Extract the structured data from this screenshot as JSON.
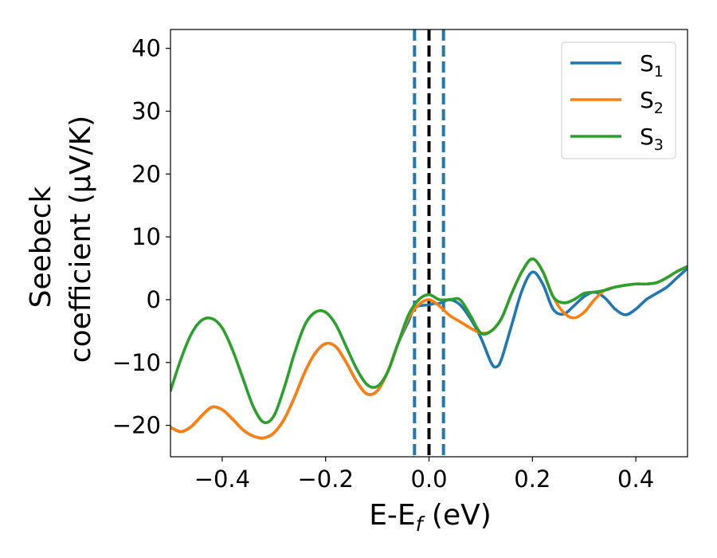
{
  "chart_data": {
    "type": "line",
    "xlabel": "E-E",
    "xlabel_sub": "f",
    "xlabel_unit": " (eV)",
    "ylabel_line1": "Seebeck",
    "ylabel_line2": "coefficient  (μV/K)",
    "xlim": [
      -0.5,
      0.5
    ],
    "ylim": [
      -25,
      43
    ],
    "xticks": [
      -0.4,
      -0.2,
      0.0,
      0.2,
      0.4
    ],
    "xtick_labels": [
      "−0.4",
      "−0.2",
      "0.0",
      "0.2",
      "0.4"
    ],
    "yticks": [
      -20,
      -10,
      0,
      10,
      20,
      30,
      40
    ],
    "ytick_labels": [
      "−20",
      "−10",
      "0",
      "10",
      "20",
      "30",
      "40"
    ],
    "grid": false,
    "legend_position": "top-right",
    "vlines": [
      {
        "x": -0.028,
        "style": "dashed",
        "color": "#1f77b4"
      },
      {
        "x": 0.0,
        "style": "dashed",
        "color": "#000000"
      },
      {
        "x": 0.028,
        "style": "dashed",
        "color": "#1f77b4"
      }
    ],
    "series": [
      {
        "name": "S",
        "sub": "1",
        "color": "#1f77b4",
        "points": [
          [
            -0.5,
            -20.3
          ],
          [
            -0.48,
            -21.0
          ],
          [
            -0.46,
            -20.2
          ],
          [
            -0.44,
            -18.5
          ],
          [
            -0.42,
            -17.1
          ],
          [
            -0.4,
            -17.5
          ],
          [
            -0.38,
            -19.0
          ],
          [
            -0.36,
            -20.7
          ],
          [
            -0.34,
            -21.7
          ],
          [
            -0.32,
            -22.0
          ],
          [
            -0.3,
            -21.2
          ],
          [
            -0.28,
            -19.0
          ],
          [
            -0.26,
            -15.5
          ],
          [
            -0.24,
            -11.5
          ],
          [
            -0.22,
            -8.5
          ],
          [
            -0.2,
            -7.0
          ],
          [
            -0.18,
            -7.5
          ],
          [
            -0.16,
            -10.0
          ],
          [
            -0.14,
            -13.0
          ],
          [
            -0.12,
            -15.0
          ],
          [
            -0.1,
            -14.5
          ],
          [
            -0.08,
            -11.5
          ],
          [
            -0.06,
            -7.0
          ],
          [
            -0.04,
            -3.5
          ],
          [
            -0.03,
            -1.5
          ],
          [
            -0.02,
            -1.0
          ],
          [
            0.0,
            -0.8
          ],
          [
            0.01,
            -0.6
          ],
          [
            0.02,
            -0.6
          ],
          [
            0.04,
            0.0
          ],
          [
            0.06,
            -0.8
          ],
          [
            0.08,
            -3.0
          ],
          [
            0.1,
            -6.0
          ],
          [
            0.12,
            -10.0
          ],
          [
            0.13,
            -10.7
          ],
          [
            0.14,
            -9.5
          ],
          [
            0.16,
            -4.0
          ],
          [
            0.18,
            1.5
          ],
          [
            0.2,
            4.4
          ],
          [
            0.22,
            2.5
          ],
          [
            0.24,
            -1.5
          ],
          [
            0.26,
            -2.3
          ],
          [
            0.28,
            -1.0
          ],
          [
            0.3,
            0.5
          ],
          [
            0.32,
            1.2
          ],
          [
            0.34,
            0.3
          ],
          [
            0.36,
            -1.5
          ],
          [
            0.38,
            -2.4
          ],
          [
            0.4,
            -1.5
          ],
          [
            0.42,
            0.0
          ],
          [
            0.44,
            1.0
          ],
          [
            0.46,
            2.0
          ],
          [
            0.48,
            3.5
          ],
          [
            0.5,
            5.0
          ]
        ]
      },
      {
        "name": "S",
        "sub": "2",
        "color": "#ff7f0e",
        "points": [
          [
            -0.5,
            -20.3
          ],
          [
            -0.48,
            -21.0
          ],
          [
            -0.46,
            -20.2
          ],
          [
            -0.44,
            -18.5
          ],
          [
            -0.42,
            -17.1
          ],
          [
            -0.4,
            -17.5
          ],
          [
            -0.38,
            -19.0
          ],
          [
            -0.36,
            -20.7
          ],
          [
            -0.34,
            -21.7
          ],
          [
            -0.32,
            -22.0
          ],
          [
            -0.3,
            -21.2
          ],
          [
            -0.28,
            -19.0
          ],
          [
            -0.26,
            -15.5
          ],
          [
            -0.24,
            -11.5
          ],
          [
            -0.22,
            -8.5
          ],
          [
            -0.2,
            -7.0
          ],
          [
            -0.18,
            -7.5
          ],
          [
            -0.16,
            -10.0
          ],
          [
            -0.14,
            -13.0
          ],
          [
            -0.12,
            -15.0
          ],
          [
            -0.1,
            -14.5
          ],
          [
            -0.08,
            -11.5
          ],
          [
            -0.06,
            -7.0
          ],
          [
            -0.04,
            -3.0
          ],
          [
            -0.02,
            -0.8
          ],
          [
            0.0,
            0.0
          ],
          [
            0.02,
            -1.0
          ],
          [
            0.04,
            -2.5
          ],
          [
            0.06,
            -3.5
          ],
          [
            0.08,
            -4.5
          ],
          [
            0.1,
            -5.3
          ],
          [
            0.12,
            -5.0
          ],
          [
            0.14,
            -3.0
          ],
          [
            0.16,
            1.0
          ],
          [
            0.18,
            4.5
          ],
          [
            0.2,
            6.5
          ],
          [
            0.22,
            4.5
          ],
          [
            0.24,
            0.5
          ],
          [
            0.26,
            -2.0
          ],
          [
            0.28,
            -2.9
          ],
          [
            0.3,
            -2.0
          ],
          [
            0.32,
            0.0
          ],
          [
            0.34,
            1.5
          ],
          [
            0.36,
            2.0
          ],
          [
            0.38,
            2.3
          ],
          [
            0.4,
            2.5
          ],
          [
            0.42,
            2.5
          ],
          [
            0.44,
            2.7
          ],
          [
            0.46,
            3.5
          ],
          [
            0.48,
            4.5
          ],
          [
            0.5,
            5.3
          ]
        ]
      },
      {
        "name": "S",
        "sub": "3",
        "color": "#2ca02c",
        "points": [
          [
            -0.5,
            -14.5
          ],
          [
            -0.48,
            -9.5
          ],
          [
            -0.46,
            -5.5
          ],
          [
            -0.44,
            -3.3
          ],
          [
            -0.42,
            -3.0
          ],
          [
            -0.4,
            -4.5
          ],
          [
            -0.38,
            -8.0
          ],
          [
            -0.36,
            -12.5
          ],
          [
            -0.34,
            -17.0
          ],
          [
            -0.32,
            -19.5
          ],
          [
            -0.3,
            -18.5
          ],
          [
            -0.28,
            -14.0
          ],
          [
            -0.26,
            -8.5
          ],
          [
            -0.24,
            -4.0
          ],
          [
            -0.22,
            -2.0
          ],
          [
            -0.2,
            -2.0
          ],
          [
            -0.18,
            -4.0
          ],
          [
            -0.16,
            -7.5
          ],
          [
            -0.14,
            -11.0
          ],
          [
            -0.12,
            -13.5
          ],
          [
            -0.1,
            -13.8
          ],
          [
            -0.08,
            -11.5
          ],
          [
            -0.06,
            -7.0
          ],
          [
            -0.04,
            -2.5
          ],
          [
            -0.02,
            0.0
          ],
          [
            0.0,
            0.8
          ],
          [
            0.02,
            0.0
          ],
          [
            0.04,
            0.0
          ],
          [
            0.06,
            0.0
          ],
          [
            0.08,
            -2.5
          ],
          [
            0.1,
            -5.3
          ],
          [
            0.12,
            -5.0
          ],
          [
            0.14,
            -3.0
          ],
          [
            0.16,
            1.0
          ],
          [
            0.18,
            4.5
          ],
          [
            0.2,
            6.5
          ],
          [
            0.22,
            4.5
          ],
          [
            0.24,
            0.5
          ],
          [
            0.26,
            -0.5
          ],
          [
            0.28,
            0.0
          ],
          [
            0.3,
            1.0
          ],
          [
            0.32,
            1.2
          ],
          [
            0.34,
            1.5
          ],
          [
            0.36,
            2.0
          ],
          [
            0.38,
            2.3
          ],
          [
            0.4,
            2.5
          ],
          [
            0.42,
            2.5
          ],
          [
            0.44,
            2.7
          ],
          [
            0.46,
            3.5
          ],
          [
            0.48,
            4.5
          ],
          [
            0.5,
            5.3
          ]
        ]
      }
    ]
  }
}
